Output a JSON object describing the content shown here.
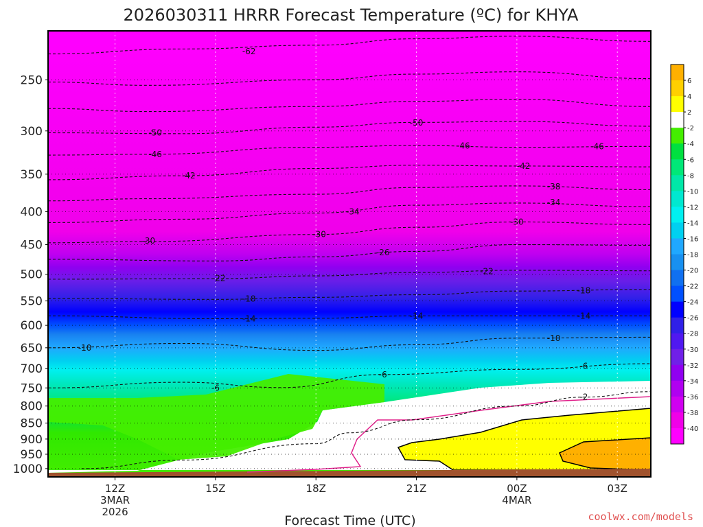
{
  "chart_data": {
    "type": "heatmap",
    "title": "2026030311 HRRR Forecast Temperature (ºC) for KHYA",
    "xlabel": "Forecast Time (UTC)",
    "credit": "coolwx.com/models",
    "y_axis": {
      "scale": "log-pressure",
      "range": [
        1030,
        210
      ],
      "ticks": [
        "250",
        "300",
        "350",
        "400",
        "450",
        "500",
        "550",
        "600",
        "650",
        "700",
        "750",
        "800",
        "850",
        "900",
        "950",
        "1000"
      ],
      "tick_values": [
        250,
        300,
        350,
        400,
        450,
        500,
        550,
        600,
        650,
        700,
        750,
        800,
        850,
        900,
        950,
        1000
      ]
    },
    "x_axis": {
      "range_hours": [
        10.0,
        28.0
      ],
      "ticks": [
        {
          "hour": 12,
          "lines": [
            "12Z",
            "3MAR",
            "2026"
          ]
        },
        {
          "hour": 15,
          "lines": [
            "15Z"
          ]
        },
        {
          "hour": 18,
          "lines": [
            "18Z"
          ]
        },
        {
          "hour": 21,
          "lines": [
            "21Z"
          ]
        },
        {
          "hour": 24,
          "lines": [
            "00Z",
            "4MAR"
          ]
        },
        {
          "hour": 27,
          "lines": [
            "03Z"
          ]
        }
      ]
    },
    "grid": true,
    "colorbar": {
      "placement": "right",
      "labels": [
        "6",
        "4",
        "2",
        "-2",
        "-4",
        "-6",
        "-8",
        "-10",
        "-12",
        "-14",
        "-16",
        "-18",
        "-20",
        "-22",
        "-24",
        "-26",
        "-28",
        "-30",
        "-32",
        "-34",
        "-36",
        "-38",
        "-40"
      ],
      "colors": [
        "#ffb000",
        "#ffd000",
        "#ffff00",
        "#ffffff",
        "#44ee00",
        "#00e040",
        "#00e878",
        "#00e8a8",
        "#00e8d0",
        "#00f0f0",
        "#00d0f0",
        "#20a8ff",
        "#1890f0",
        "#1070f0",
        "#0050ff",
        "#0000ff",
        "#3020e8",
        "#5018f0",
        "#7020e8",
        "#9000f0",
        "#b000f0",
        "#d000f0",
        "#f000e8",
        "#ff00ff"
      ]
    },
    "isotherms": [
      {
        "temp": -62,
        "label": "-62",
        "points": [
          [
            10,
            228
          ],
          [
            14,
            224
          ],
          [
            18,
            221
          ],
          [
            21,
            216
          ],
          [
            24,
            214
          ],
          [
            28,
            218
          ]
        ],
        "label_at": [
          [
            16,
            226
          ]
        ]
      },
      {
        "temp": -58,
        "label": "",
        "points": [
          [
            10,
            252
          ],
          [
            13,
            255
          ],
          [
            18,
            250
          ],
          [
            21,
            245
          ],
          [
            24,
            243
          ],
          [
            28,
            249
          ]
        ],
        "label_at": []
      },
      {
        "temp": -54,
        "label": "",
        "points": [
          [
            10,
            277
          ],
          [
            13,
            280
          ],
          [
            18,
            275
          ],
          [
            21,
            270
          ],
          [
            24,
            268
          ],
          [
            28,
            275
          ]
        ],
        "label_at": []
      },
      {
        "temp": -50,
        "label": "-50",
        "points": [
          [
            10,
            302
          ],
          [
            14,
            303
          ],
          [
            18,
            296
          ],
          [
            21,
            291
          ],
          [
            24,
            290
          ],
          [
            28,
            295
          ]
        ],
        "label_at": [
          [
            13.2,
            302
          ],
          [
            21.0,
            291.5
          ]
        ]
      },
      {
        "temp": -46,
        "label": "-46",
        "points": [
          [
            10,
            327
          ],
          [
            13,
            326
          ],
          [
            18,
            318
          ],
          [
            21,
            316
          ],
          [
            24,
            318
          ],
          [
            28,
            317
          ]
        ],
        "label_at": [
          [
            13.2,
            326
          ],
          [
            22.4,
            316.5
          ],
          [
            26.4,
            317
          ]
        ]
      },
      {
        "temp": -42,
        "label": "-42",
        "points": [
          [
            10,
            357
          ],
          [
            14,
            352
          ],
          [
            18,
            343
          ],
          [
            21,
            339
          ],
          [
            24,
            340
          ],
          [
            28,
            341
          ]
        ],
        "label_at": [
          [
            14.2,
            352
          ],
          [
            24.2,
            340
          ]
        ]
      },
      {
        "temp": -38,
        "label": "-38",
        "points": [
          [
            10,
            385
          ],
          [
            13,
            382
          ],
          [
            18,
            376
          ],
          [
            21,
            367
          ],
          [
            24,
            365
          ],
          [
            28,
            370
          ]
        ],
        "label_at": [
          [
            25.1,
            366
          ]
        ]
      },
      {
        "temp": -34,
        "label": "-34",
        "points": [
          [
            10,
            416
          ],
          [
            14,
            411
          ],
          [
            18,
            402
          ],
          [
            21,
            391
          ],
          [
            24,
            388
          ],
          [
            28,
            393
          ]
        ],
        "label_at": [
          [
            19.1,
            400
          ],
          [
            25.1,
            387
          ]
        ]
      },
      {
        "temp": -30,
        "label": "-30",
        "points": [
          [
            10,
            447
          ],
          [
            13,
            445
          ],
          [
            18,
            434
          ],
          [
            21,
            423
          ],
          [
            24,
            415
          ],
          [
            28,
            419
          ]
        ],
        "label_at": [
          [
            13.0,
            444
          ],
          [
            18.1,
            434
          ],
          [
            24.0,
            415
          ]
        ]
      },
      {
        "temp": -26,
        "label": "-26",
        "points": [
          [
            10,
            474
          ],
          [
            15,
            477
          ],
          [
            18,
            470
          ],
          [
            21,
            461
          ],
          [
            24,
            450
          ],
          [
            28,
            451
          ]
        ],
        "label_at": [
          [
            20.0,
            463
          ]
        ]
      },
      {
        "temp": -22,
        "label": "-22",
        "points": [
          [
            10,
            509
          ],
          [
            15,
            508
          ],
          [
            18,
            503
          ],
          [
            21,
            497
          ],
          [
            24,
            493
          ],
          [
            28,
            494
          ]
        ],
        "label_at": [
          [
            15.1,
            507
          ],
          [
            23.1,
            495
          ]
        ]
      },
      {
        "temp": -18,
        "label": "-18",
        "points": [
          [
            10,
            545
          ],
          [
            15,
            547
          ],
          [
            18,
            543
          ],
          [
            21,
            538
          ],
          [
            24,
            531
          ],
          [
            28,
            528
          ]
        ],
        "label_at": [
          [
            16.0,
            546
          ],
          [
            26.0,
            530
          ]
        ]
      },
      {
        "temp": -14,
        "label": "-14",
        "points": [
          [
            10,
            580
          ],
          [
            15,
            586
          ],
          [
            18,
            585
          ],
          [
            21,
            580
          ],
          [
            24,
            580
          ],
          [
            28,
            580
          ]
        ],
        "label_at": [
          [
            16.0,
            586
          ],
          [
            21.0,
            580
          ],
          [
            26.0,
            580
          ]
        ]
      },
      {
        "temp": -10,
        "label": "-10",
        "points": [
          [
            10,
            650
          ],
          [
            14,
            640
          ],
          [
            18,
            656
          ],
          [
            21,
            643
          ],
          [
            24,
            628
          ],
          [
            28,
            626
          ]
        ],
        "label_at": [
          [
            11.1,
            650
          ],
          [
            25.1,
            628
          ]
        ]
      },
      {
        "temp": -6,
        "label": "-6",
        "points": [
          [
            10,
            750
          ],
          [
            14,
            735
          ],
          [
            17,
            749
          ],
          [
            20,
            715
          ],
          [
            24,
            702
          ],
          [
            28,
            688
          ]
        ],
        "label_at": [
          [
            15.0,
            750
          ],
          [
            20.0,
            715
          ],
          [
            26.0,
            694
          ]
        ]
      },
      {
        "temp": -2,
        "label": "-2",
        "points": [
          [
            11,
            1000
          ],
          [
            14,
            970
          ],
          [
            18,
            915
          ],
          [
            19,
            880
          ],
          [
            21,
            840
          ],
          [
            24,
            800
          ],
          [
            26,
            775
          ],
          [
            28,
            760
          ]
        ],
        "label_at": [
          [
            26.0,
            775
          ]
        ]
      }
    ]
  }
}
